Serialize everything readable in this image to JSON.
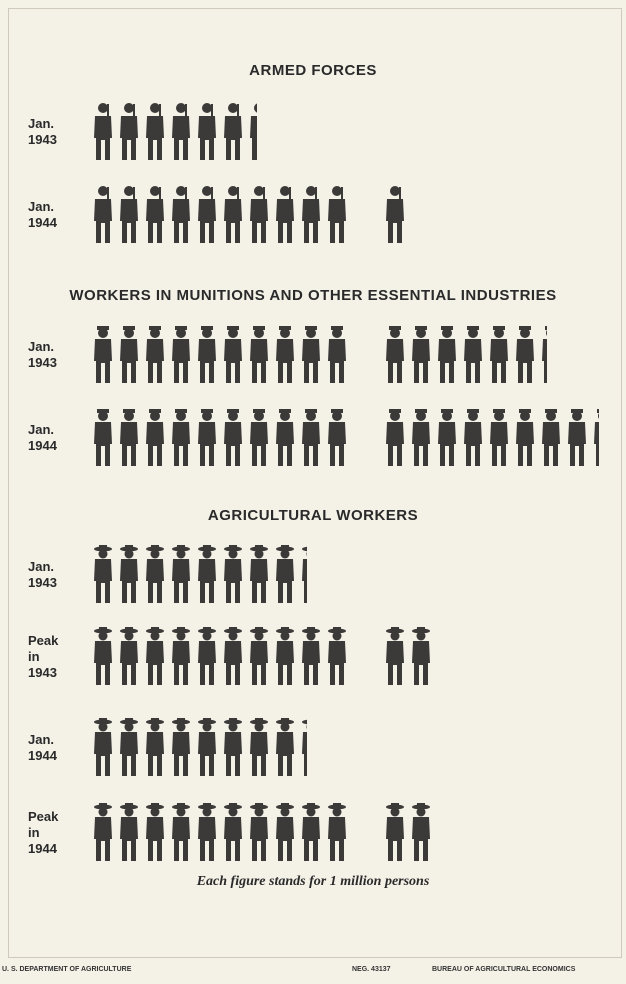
{
  "chart_data": {
    "type": "pictograph",
    "color": "#3b3a38",
    "note": "Each figure stands for 1 million persons",
    "groups": [
      {
        "title": "ARMED FORCES",
        "categories": [
          "Jan. 1943",
          "Jan. 1944"
        ],
        "values": [
          6.4,
          10.9
        ]
      },
      {
        "title": "WORKERS IN MUNITIONS AND OTHER ESSENTIAL INDUSTRIES",
        "categories": [
          "Jan. 1943",
          "Jan. 1944"
        ],
        "values": [
          16.3,
          18.3
        ]
      },
      {
        "title": "AGRICULTURAL WORKERS",
        "categories": [
          "Jan. 1943",
          "Peak in 1943",
          "Jan. 1944",
          "Peak in 1944"
        ],
        "values": [
          8.3,
          12,
          8.3,
          12
        ]
      }
    ]
  },
  "footer": {
    "left": "U. S. DEPARTMENT OF AGRICULTURE",
    "neg": "NEG. 43137",
    "right": "BUREAU OF AGRICULTURAL ECONOMICS"
  }
}
